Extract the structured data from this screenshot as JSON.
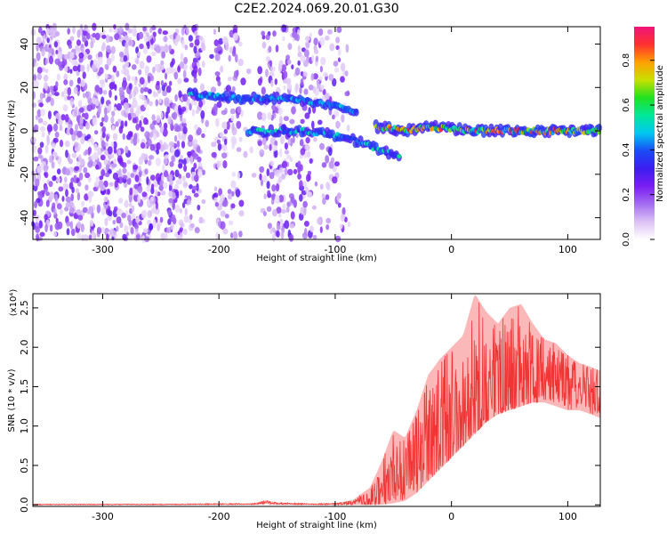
{
  "title": "C2E2.2024.069.20.01.G30",
  "chart_data": [
    {
      "type": "heatmap",
      "xlabel": "Height of straight line (km)",
      "ylabel": "Frequency (Hz)",
      "xlim": [
        -360,
        128
      ],
      "ylim": [
        -50,
        48
      ],
      "x_ticks": [
        -300,
        -200,
        -100,
        0,
        100
      ],
      "y_ticks": [
        -40,
        -20,
        0,
        20,
        40
      ],
      "colorbar": {
        "label": "Normalized spectral amplitude",
        "range": [
          0,
          0.95
        ],
        "ticks": [
          0.0,
          0.2,
          0.4,
          0.6,
          0.8
        ],
        "colormap": [
          "#ffffff",
          "#dcc2f5",
          "#a36cf0",
          "#7a1ef2",
          "#3c1df0",
          "#1a4cf5",
          "#00c8f0",
          "#00e89a",
          "#22e020",
          "#c8e000",
          "#ffa000",
          "#ff3030",
          "#f0147a"
        ]
      },
      "features": [
        {
          "name": "noise",
          "x_range": [
            -360,
            -88
          ],
          "freq_range": [
            -50,
            48
          ]
        },
        {
          "name": "upper branch",
          "points": [
            [
              -225,
              17
            ],
            [
              -205,
              16
            ],
            [
              -185,
              15
            ],
            [
              -165,
              15
            ],
            [
              -145,
              15
            ],
            [
              -125,
              14
            ],
            [
              -105,
              12
            ],
            [
              -90,
              10
            ],
            [
              -80,
              8
            ]
          ]
        },
        {
          "name": "lower branch",
          "points": [
            [
              -175,
              0
            ],
            [
              -150,
              0
            ],
            [
              -125,
              0
            ],
            [
              -100,
              -2
            ],
            [
              -80,
              -5
            ],
            [
              -60,
              -9
            ],
            [
              -45,
              -12
            ]
          ]
        },
        {
          "name": "main trace",
          "points": [
            [
              -65,
              2
            ],
            [
              -40,
              0
            ],
            [
              -20,
              2
            ],
            [
              0,
              1
            ],
            [
              20,
              0
            ],
            [
              40,
              0
            ],
            [
              60,
              0
            ],
            [
              80,
              0
            ],
            [
              100,
              0
            ],
            [
              128,
              0
            ]
          ]
        }
      ]
    },
    {
      "type": "line",
      "xlabel": "Height of straight line (km)",
      "ylabel": "SNR (10 * v/v)",
      "y_multiplier": "(x10⁴)",
      "xlim": [
        -360,
        128
      ],
      "ylim": [
        -0.02,
        2.68
      ],
      "x_ticks": [
        -300,
        -200,
        -100,
        0,
        100
      ],
      "y_ticks": [
        0.0,
        0.5,
        1.0,
        1.5,
        2.0,
        2.5
      ],
      "series": [
        {
          "color": "#f03535",
          "x": [
            -360,
            -250,
            -170,
            -160,
            -150,
            -120,
            -100,
            -85,
            -70,
            -60,
            -50,
            -40,
            -30,
            -20,
            -10,
            0,
            10,
            20,
            30,
            40,
            50,
            60,
            70,
            80,
            90,
            100,
            110,
            120,
            128
          ],
          "y": [
            0.005,
            0.006,
            0.01,
            0.035,
            0.015,
            0.008,
            0.01,
            0.02,
            0.08,
            0.2,
            0.35,
            0.45,
            0.65,
            0.8,
            0.95,
            1.05,
            1.2,
            1.35,
            1.45,
            1.55,
            1.65,
            1.7,
            1.7,
            1.65,
            1.6,
            1.58,
            1.55,
            1.5,
            1.45
          ],
          "envelope_high": [
            0.01,
            0.01,
            0.02,
            0.06,
            0.03,
            0.015,
            0.02,
            0.06,
            0.22,
            0.55,
            0.95,
            0.85,
            1.2,
            1.65,
            1.85,
            2.0,
            2.15,
            2.68,
            2.45,
            2.3,
            2.5,
            2.55,
            2.3,
            2.1,
            2.05,
            1.9,
            1.8,
            1.75,
            1.7
          ],
          "envelope_low": [
            0.0,
            0.0,
            0.005,
            0.01,
            0.005,
            0.003,
            0.0,
            0.0,
            0.0,
            0.0,
            0.02,
            0.05,
            0.15,
            0.3,
            0.45,
            0.6,
            0.75,
            0.9,
            1.05,
            1.15,
            1.2,
            1.25,
            1.3,
            1.3,
            1.25,
            1.2,
            1.2,
            1.15,
            1.1
          ]
        }
      ]
    }
  ]
}
